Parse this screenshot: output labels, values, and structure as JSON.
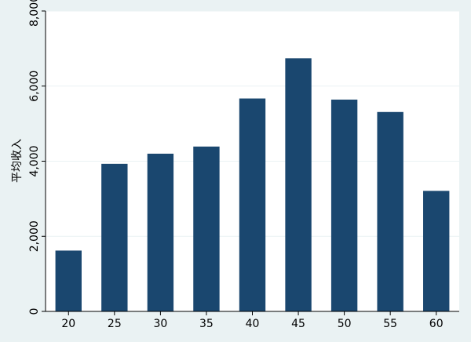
{
  "chart_data": {
    "type": "bar",
    "title": "",
    "xlabel": "",
    "ylabel": "平均收入",
    "categories": [
      "20",
      "25",
      "30",
      "35",
      "40",
      "45",
      "50",
      "55",
      "60"
    ],
    "values": [
      1620,
      3930,
      4200,
      4390,
      5670,
      6740,
      5640,
      5310,
      3210
    ],
    "ylim": [
      0,
      8000
    ],
    "yticks": [
      0,
      2000,
      4000,
      6000,
      8000
    ],
    "ytick_labels": [
      "0",
      "2,000",
      "4,000",
      "6,000",
      "8,000"
    ],
    "grid": true,
    "bar_color": "#1a476f",
    "plot_background": "#ffffff",
    "page_background": "#eaf2f3",
    "grid_color": "#eaf2f3"
  }
}
